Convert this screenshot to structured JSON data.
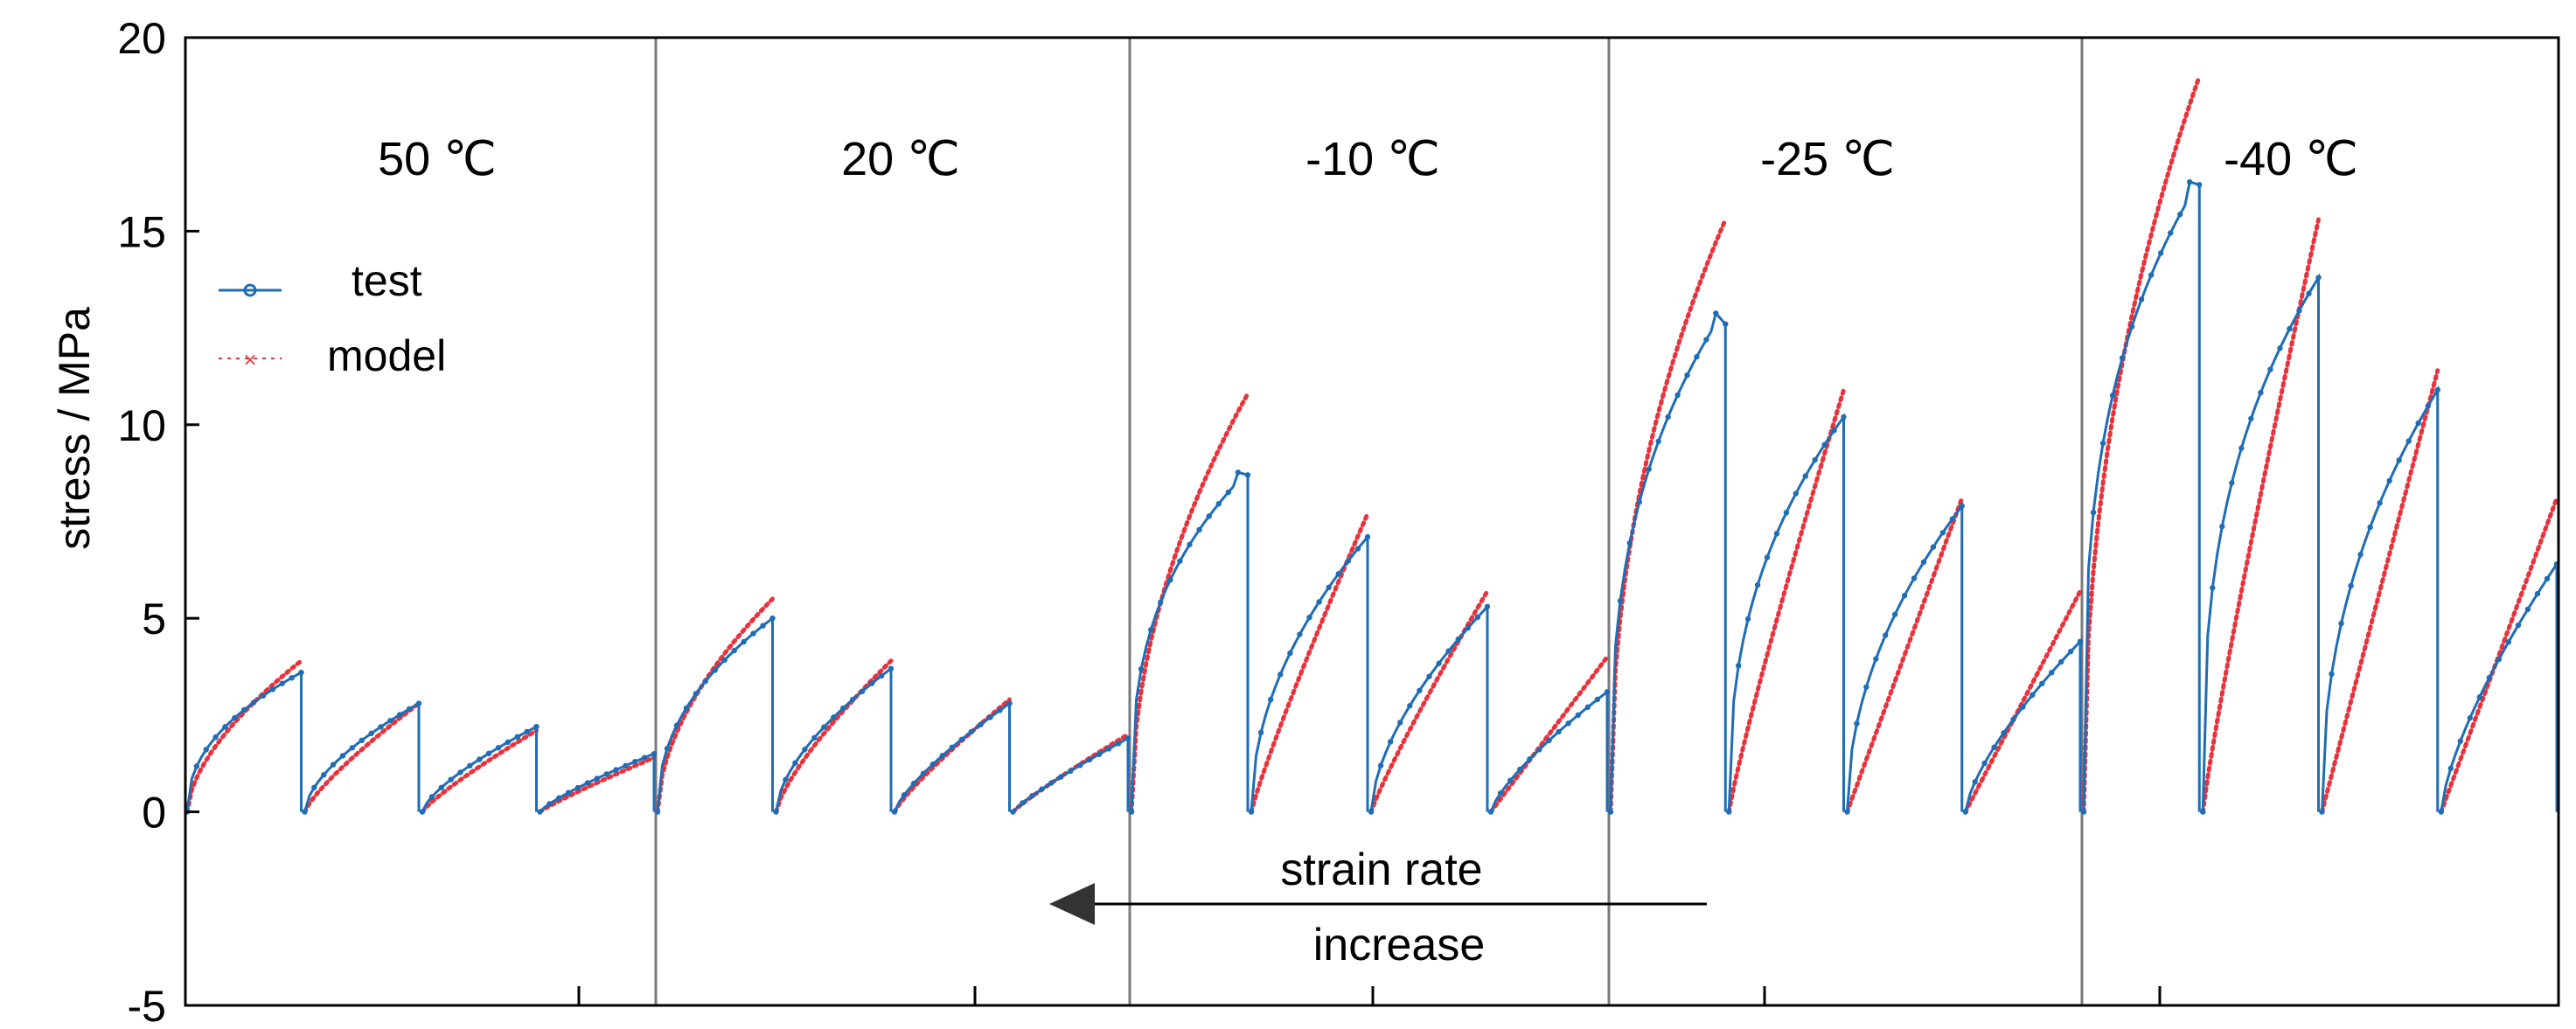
{
  "chart_data": {
    "type": "line",
    "ylabel": "stress / MPa",
    "ylim": [
      -5,
      20
    ],
    "yticks": [
      -5,
      0,
      5,
      10,
      15,
      20
    ],
    "panels": [
      "50 ℃",
      "20 ℃",
      "-10 ℃",
      "-25 ℃",
      "-40 ℃"
    ],
    "legend": {
      "position": "upper-left",
      "entries": [
        "test",
        "model"
      ]
    },
    "colors": {
      "test": "#1f6db5",
      "model": "#e8323c",
      "divider": "#7a7a7a",
      "axis": "#000000"
    },
    "annotation": {
      "line1": "strain rate",
      "line2": "increase"
    },
    "curves": [
      {
        "panel": 0,
        "test_peak": 3.6,
        "test_end": 3.6,
        "model_end": 3.9,
        "test_shape": 0.45,
        "model_shape": 0.6
      },
      {
        "panel": 0,
        "test_peak": 2.8,
        "test_end": 2.8,
        "model_end": 2.8,
        "test_shape": 0.6,
        "model_shape": 0.8
      },
      {
        "panel": 0,
        "test_peak": 2.2,
        "test_end": 2.2,
        "model_end": 2.1,
        "test_shape": 0.7,
        "model_shape": 0.85
      },
      {
        "panel": 0,
        "test_peak": 1.5,
        "test_end": 1.5,
        "model_end": 1.4,
        "test_shape": 0.8,
        "model_shape": 0.9
      },
      {
        "panel": 1,
        "test_peak": 5.0,
        "test_end": 5.0,
        "model_end": 5.5,
        "test_shape": 0.45,
        "model_shape": 0.55
      },
      {
        "panel": 1,
        "test_peak": 3.7,
        "test_end": 3.7,
        "model_end": 3.9,
        "test_shape": 0.6,
        "model_shape": 0.75
      },
      {
        "panel": 1,
        "test_peak": 2.8,
        "test_end": 2.8,
        "model_end": 2.9,
        "test_shape": 0.75,
        "model_shape": 0.85
      },
      {
        "panel": 1,
        "test_peak": 1.9,
        "test_end": 1.9,
        "model_end": 2.0,
        "test_shape": 0.85,
        "model_shape": 0.9
      },
      {
        "panel": 2,
        "test_peak": 8.8,
        "test_end": 8.7,
        "model_end": 10.8,
        "test_shape": 0.35,
        "model_shape": 0.5
      },
      {
        "panel": 2,
        "test_peak": 7.1,
        "test_end": 7.1,
        "model_end": 7.7,
        "test_shape": 0.5,
        "model_shape": 0.9
      },
      {
        "panel": 2,
        "test_peak": 5.3,
        "test_end": 5.3,
        "model_end": 5.7,
        "test_shape": 0.6,
        "model_shape": 0.9
      },
      {
        "panel": 2,
        "test_peak": 3.1,
        "test_end": 3.1,
        "model_end": 4.0,
        "test_shape": 0.75,
        "model_shape": 1.0
      },
      {
        "panel": 3,
        "test_peak": 13.0,
        "test_end": 12.6,
        "model_end": 15.3,
        "test_shape": 0.35,
        "model_shape": 0.45
      },
      {
        "panel": 3,
        "test_peak": 10.2,
        "test_end": 10.2,
        "model_end": 10.9,
        "test_shape": 0.4,
        "model_shape": 0.9
      },
      {
        "panel": 3,
        "test_peak": 7.9,
        "test_end": 7.9,
        "model_end": 8.1,
        "test_shape": 0.5,
        "model_shape": 1.0
      },
      {
        "panel": 3,
        "test_peak": 4.4,
        "test_end": 4.4,
        "model_end": 5.7,
        "test_shape": 0.7,
        "model_shape": 1.0
      },
      {
        "panel": 4,
        "test_peak": 16.3,
        "test_end": 16.2,
        "model_end": 19.0,
        "test_shape": 0.3,
        "model_shape": 0.45
      },
      {
        "panel": 4,
        "test_peak": 13.8,
        "test_end": 13.8,
        "model_end": 15.3,
        "test_shape": 0.35,
        "model_shape": 0.9
      },
      {
        "panel": 4,
        "test_peak": 10.9,
        "test_end": 10.9,
        "model_end": 11.4,
        "test_shape": 0.45,
        "model_shape": 1.0
      },
      {
        "panel": 4,
        "test_peak": 6.4,
        "test_end": 6.4,
        "model_end": 8.1,
        "test_shape": 0.7,
        "model_shape": 1.0
      }
    ]
  }
}
